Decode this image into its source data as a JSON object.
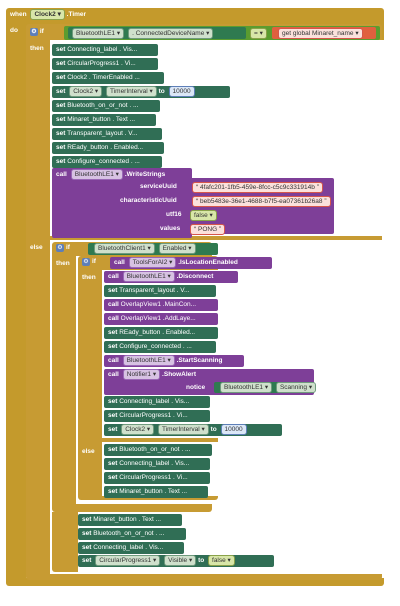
{
  "event": {
    "when": "when",
    "component": "Clock2",
    "event_name": ".Timer",
    "do": "do"
  },
  "kw": {
    "if": "if",
    "then": "then",
    "else": "else",
    "set": "set",
    "call": "call",
    "to": "to"
  },
  "top_if": {
    "component": "BluetoothLE1",
    "property": ". ConnectedDeviceName",
    "op": "=",
    "global": "get global Minaret_name"
  },
  "then_sets": [
    "Connecting_label . Vis...",
    "CircularProgress1 . Vi...",
    "Clock2 . TimerEnabled ...",
    "",
    "Bluetooth_on_or_not . ...",
    "Minaret_button . Text ...",
    "Transparent_layout . V...",
    "REady_button . Enabled...",
    "Configure_connected . ..."
  ],
  "timer_set": {
    "component": "Clock2",
    "property": "TimerInterval",
    "value": "10000"
  },
  "write": {
    "component": "BluetoothLE1",
    "method": ".WriteStrings",
    "service_label": "serviceUuid",
    "service_value": "4fafc201-1fb5-459e-8fcc-c5c9c331914b",
    "char_label": "characteristicUuid",
    "char_value": "beb5483e-36e1-4688-b7f5-ea07361b26a8",
    "utf16_label": "utf16",
    "utf16_value": "false",
    "values_label": "values",
    "values_value": "PONG"
  },
  "else_if": {
    "component": "BluetoothClient1",
    "property": "Enabled"
  },
  "inner_if": {
    "component": "ToolsForAI2",
    "method": ".IsLocationEnabled"
  },
  "inner_then": {
    "disconnect_comp": "BluetoothLE1",
    "disconnect_method": ".Disconnect",
    "transparent": "Transparent_layout . V...",
    "overlay1": "OverlapView1 .MainCon...",
    "overlay2": "OverlapView1 .AddLaye...",
    "ready": "REady_button . Enabled...",
    "configure": "Configure_connected . ...",
    "scan_comp": "BluetoothLE1",
    "scan_method": ".StartScanning",
    "alert_comp": "Notifier1",
    "alert_method": ".ShowAlert",
    "notice_label": "notice",
    "notice_comp": "BluetoothLE1",
    "notice_prop": "Scanning",
    "connecting": "Connecting_label . Vis...",
    "circular": "CircularProgress1 . Vi...",
    "clock_comp": "Clock2",
    "clock_prop": "TimerInterval",
    "clock_value": "10000"
  },
  "inner_else": [
    "Bluetooth_on_or_not . ...",
    "Connecting_label . Vis...",
    "CircularProgress1 . Vi...",
    "Minaret_button . Text ..."
  ],
  "outer_else": {
    "minaret": "Minaret_button . Text ...",
    "bluetooth": "Bluetooth_on_or_not . ...",
    "connecting": "Connecting_label . Vis...",
    "circ_comp": "CircularProgress1",
    "circ_prop": "Visible",
    "circ_value": "false"
  }
}
